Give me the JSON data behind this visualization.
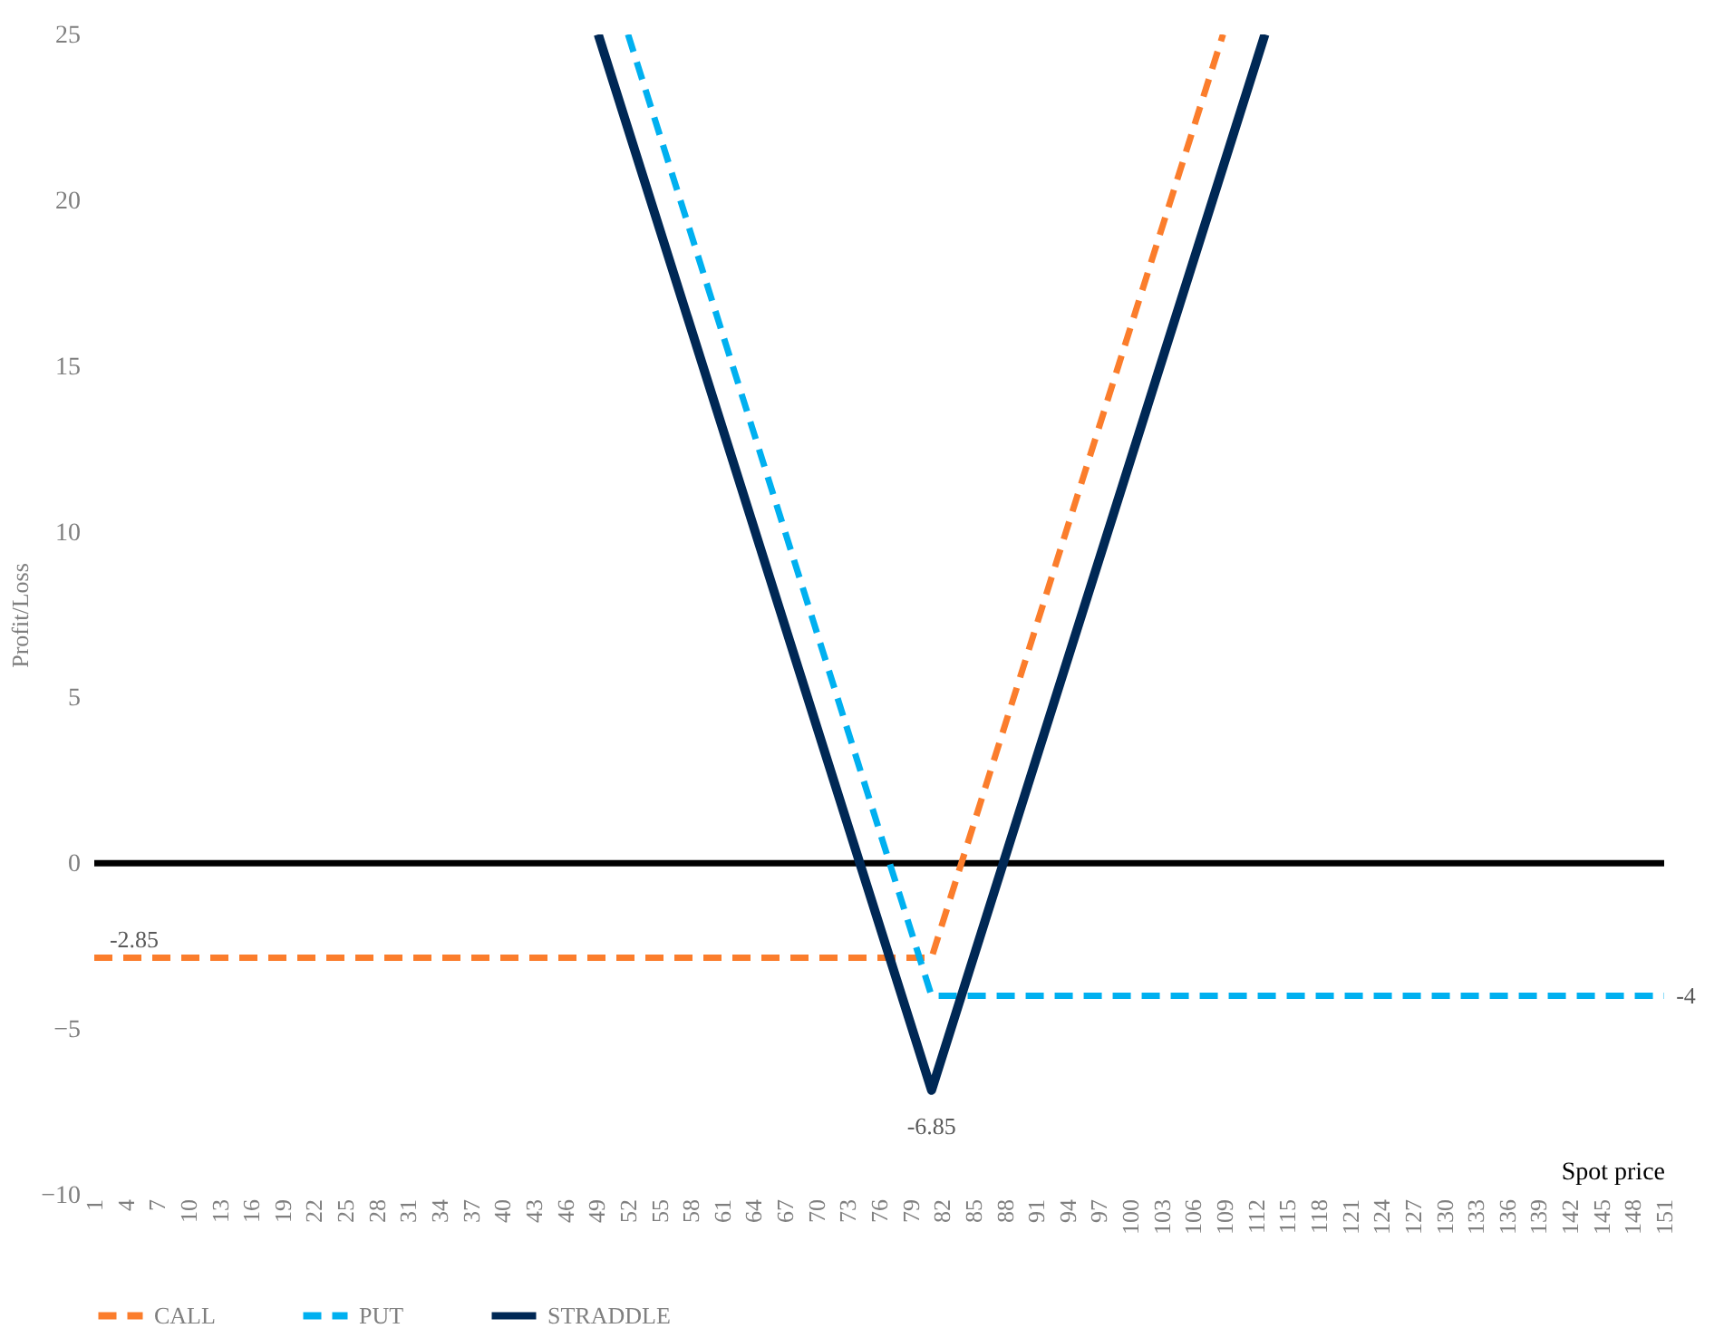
{
  "chart_data": {
    "type": "line",
    "xlabel": "Spot price",
    "ylabel": "Profit/Loss",
    "xlim": [
      1,
      151
    ],
    "xticks": [
      1,
      4,
      7,
      10,
      13,
      16,
      19,
      22,
      25,
      28,
      31,
      34,
      37,
      40,
      43,
      46,
      49,
      52,
      55,
      58,
      61,
      64,
      67,
      70,
      73,
      76,
      79,
      82,
      85,
      88,
      91,
      94,
      97,
      100,
      103,
      106,
      109,
      112,
      115,
      118,
      121,
      124,
      127,
      130,
      133,
      136,
      139,
      142,
      145,
      148,
      151
    ],
    "ylim": [
      -10,
      25
    ],
    "yticks": [
      -10,
      -5,
      0,
      5,
      10,
      15,
      20,
      25
    ],
    "grid": false,
    "legend": "bottom",
    "marker": "none",
    "ref_lines": [
      {
        "axis": "y",
        "value": 0,
        "color": "#000000"
      }
    ],
    "series": [
      {
        "name": "CALL",
        "color": "#fb7d2c",
        "line_style": "dashed",
        "x": [
          1,
          81,
          108.85
        ],
        "values": [
          -2.85,
          -2.85,
          25
        ],
        "value_labels": [
          "-2.85",
          null,
          null
        ]
      },
      {
        "name": "PUT",
        "color": "#00b0f0",
        "line_style": "dashed",
        "x": [
          52,
          81,
          151
        ],
        "values": [
          25,
          -4,
          -4
        ],
        "value_labels": [
          null,
          null,
          "-4"
        ]
      },
      {
        "name": "STRADDLE",
        "color": "#002855",
        "line_style": "solid",
        "x": [
          49.15,
          81,
          112.85
        ],
        "values": [
          25,
          -6.85,
          25
        ],
        "value_labels": [
          null,
          "-6.85",
          null
        ]
      }
    ]
  }
}
